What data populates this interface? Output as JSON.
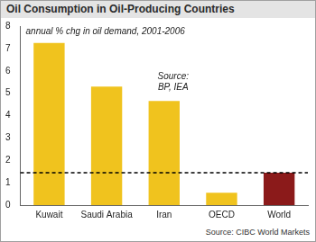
{
  "chart_data": {
    "type": "bar",
    "title": "Oil Consumption in Oil-Producing Countries",
    "subtitle": "annual % chg in oil demand, 2001-2006",
    "categories": [
      "Kuwait",
      "Saudi Arabia",
      "Iran",
      "OECD",
      "World"
    ],
    "values": [
      7.25,
      5.3,
      4.65,
      0.55,
      1.45
    ],
    "colors": [
      "#f0c31e",
      "#f0c31e",
      "#f0c31e",
      "#f0c31e",
      "#8b1a1a"
    ],
    "reference_line": 1.45,
    "annotation": {
      "text": [
        "Source:",
        "BP, IEA"
      ],
      "category": "Iran"
    },
    "source": "Source: CIBC World Markets",
    "ylim": [
      0,
      8
    ],
    "yticks": [
      0,
      1,
      2,
      3,
      4,
      5,
      6,
      7,
      8
    ],
    "grid": false
  }
}
